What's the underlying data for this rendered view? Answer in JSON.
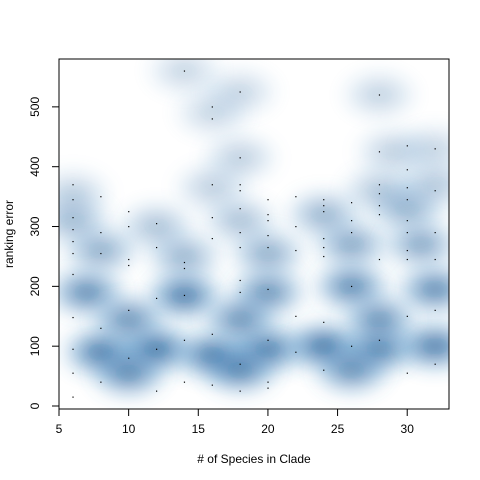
{
  "chart_data": {
    "type": "heatmap",
    "subtype": "smoothed-density-scatter",
    "title": "",
    "xlabel": "# of Species in Clade",
    "ylabel": "ranking error",
    "xlim": [
      5,
      33
    ],
    "ylim": [
      -5,
      580
    ],
    "x_ticks": [
      5,
      10,
      15,
      20,
      25,
      30
    ],
    "y_ticks": [
      0,
      100,
      200,
      300,
      400,
      500
    ],
    "grid": false,
    "legend": "none",
    "colors": {
      "low": "#ffffff",
      "high": "#08306b"
    },
    "points": [
      {
        "x": 6,
        "y": 15
      },
      {
        "x": 6,
        "y": 55
      },
      {
        "x": 6,
        "y": 95
      },
      {
        "x": 6,
        "y": 148
      },
      {
        "x": 6,
        "y": 220
      },
      {
        "x": 6,
        "y": 255
      },
      {
        "x": 6,
        "y": 275
      },
      {
        "x": 6,
        "y": 295
      },
      {
        "x": 6,
        "y": 315
      },
      {
        "x": 6,
        "y": 345
      },
      {
        "x": 6,
        "y": 370
      },
      {
        "x": 8,
        "y": 40
      },
      {
        "x": 8,
        "y": 130
      },
      {
        "x": 8,
        "y": 255
      },
      {
        "x": 8,
        "y": 290
      },
      {
        "x": 8,
        "y": 350
      },
      {
        "x": 10,
        "y": 80
      },
      {
        "x": 10,
        "y": 160
      },
      {
        "x": 10,
        "y": 235
      },
      {
        "x": 10,
        "y": 245
      },
      {
        "x": 10,
        "y": 300
      },
      {
        "x": 10,
        "y": 325
      },
      {
        "x": 12,
        "y": 25
      },
      {
        "x": 12,
        "y": 95
      },
      {
        "x": 12,
        "y": 180
      },
      {
        "x": 12,
        "y": 265
      },
      {
        "x": 12,
        "y": 305
      },
      {
        "x": 14,
        "y": 40
      },
      {
        "x": 14,
        "y": 110
      },
      {
        "x": 14,
        "y": 185
      },
      {
        "x": 14,
        "y": 230
      },
      {
        "x": 14,
        "y": 240
      },
      {
        "x": 14,
        "y": 560
      },
      {
        "x": 16,
        "y": 35
      },
      {
        "x": 16,
        "y": 120
      },
      {
        "x": 16,
        "y": 280
      },
      {
        "x": 16,
        "y": 315
      },
      {
        "x": 16,
        "y": 370
      },
      {
        "x": 16,
        "y": 480
      },
      {
        "x": 16,
        "y": 500
      },
      {
        "x": 18,
        "y": 25
      },
      {
        "x": 18,
        "y": 70
      },
      {
        "x": 18,
        "y": 190
      },
      {
        "x": 18,
        "y": 210
      },
      {
        "x": 18,
        "y": 265
      },
      {
        "x": 18,
        "y": 290
      },
      {
        "x": 18,
        "y": 330
      },
      {
        "x": 18,
        "y": 360
      },
      {
        "x": 18,
        "y": 370
      },
      {
        "x": 18,
        "y": 415
      },
      {
        "x": 18,
        "y": 525
      },
      {
        "x": 20,
        "y": 30
      },
      {
        "x": 20,
        "y": 40
      },
      {
        "x": 20,
        "y": 110
      },
      {
        "x": 20,
        "y": 195
      },
      {
        "x": 20,
        "y": 265
      },
      {
        "x": 20,
        "y": 285
      },
      {
        "x": 20,
        "y": 310
      },
      {
        "x": 20,
        "y": 320
      },
      {
        "x": 20,
        "y": 345
      },
      {
        "x": 22,
        "y": 90
      },
      {
        "x": 22,
        "y": 150
      },
      {
        "x": 22,
        "y": 260
      },
      {
        "x": 22,
        "y": 300
      },
      {
        "x": 22,
        "y": 350
      },
      {
        "x": 24,
        "y": 60
      },
      {
        "x": 24,
        "y": 140
      },
      {
        "x": 24,
        "y": 250
      },
      {
        "x": 24,
        "y": 265
      },
      {
        "x": 24,
        "y": 280
      },
      {
        "x": 24,
        "y": 325
      },
      {
        "x": 24,
        "y": 335
      },
      {
        "x": 24,
        "y": 345
      },
      {
        "x": 26,
        "y": 100
      },
      {
        "x": 26,
        "y": 200
      },
      {
        "x": 26,
        "y": 290
      },
      {
        "x": 26,
        "y": 310
      },
      {
        "x": 26,
        "y": 340
      },
      {
        "x": 28,
        "y": 110
      },
      {
        "x": 28,
        "y": 245
      },
      {
        "x": 28,
        "y": 320
      },
      {
        "x": 28,
        "y": 335
      },
      {
        "x": 28,
        "y": 355
      },
      {
        "x": 28,
        "y": 370
      },
      {
        "x": 28,
        "y": 425
      },
      {
        "x": 28,
        "y": 520
      },
      {
        "x": 30,
        "y": 55
      },
      {
        "x": 30,
        "y": 150
      },
      {
        "x": 30,
        "y": 245
      },
      {
        "x": 30,
        "y": 260
      },
      {
        "x": 30,
        "y": 290
      },
      {
        "x": 30,
        "y": 310
      },
      {
        "x": 30,
        "y": 345
      },
      {
        "x": 30,
        "y": 365
      },
      {
        "x": 30,
        "y": 395
      },
      {
        "x": 30,
        "y": 435
      },
      {
        "x": 32,
        "y": 70
      },
      {
        "x": 32,
        "y": 160
      },
      {
        "x": 32,
        "y": 245
      },
      {
        "x": 32,
        "y": 290
      },
      {
        "x": 32,
        "y": 360
      },
      {
        "x": 32,
        "y": 430
      }
    ],
    "density_blobs": [
      {
        "x": 8,
        "y": 90,
        "weight": 0.95
      },
      {
        "x": 12,
        "y": 95,
        "weight": 1.0
      },
      {
        "x": 16,
        "y": 85,
        "weight": 0.95
      },
      {
        "x": 20,
        "y": 95,
        "weight": 0.95
      },
      {
        "x": 24,
        "y": 100,
        "weight": 1.0
      },
      {
        "x": 28,
        "y": 95,
        "weight": 0.9
      },
      {
        "x": 32,
        "y": 100,
        "weight": 0.95
      },
      {
        "x": 10,
        "y": 55,
        "weight": 0.85
      },
      {
        "x": 18,
        "y": 60,
        "weight": 0.85
      },
      {
        "x": 26,
        "y": 60,
        "weight": 0.8
      },
      {
        "x": 7,
        "y": 190,
        "weight": 0.85
      },
      {
        "x": 14,
        "y": 185,
        "weight": 0.95
      },
      {
        "x": 20,
        "y": 190,
        "weight": 0.8
      },
      {
        "x": 26,
        "y": 200,
        "weight": 0.85
      },
      {
        "x": 32,
        "y": 195,
        "weight": 0.85
      },
      {
        "x": 10,
        "y": 145,
        "weight": 0.8
      },
      {
        "x": 18,
        "y": 145,
        "weight": 0.8
      },
      {
        "x": 28,
        "y": 145,
        "weight": 0.8
      },
      {
        "x": 8,
        "y": 260,
        "weight": 0.6
      },
      {
        "x": 14,
        "y": 250,
        "weight": 0.55
      },
      {
        "x": 20,
        "y": 255,
        "weight": 0.6
      },
      {
        "x": 26,
        "y": 270,
        "weight": 0.65
      },
      {
        "x": 31,
        "y": 270,
        "weight": 0.65
      },
      {
        "x": 6,
        "y": 310,
        "weight": 0.5
      },
      {
        "x": 12,
        "y": 300,
        "weight": 0.45
      },
      {
        "x": 18,
        "y": 310,
        "weight": 0.45
      },
      {
        "x": 24,
        "y": 320,
        "weight": 0.55
      },
      {
        "x": 30,
        "y": 330,
        "weight": 0.55
      },
      {
        "x": 6,
        "y": 355,
        "weight": 0.35
      },
      {
        "x": 16,
        "y": 365,
        "weight": 0.35
      },
      {
        "x": 28,
        "y": 360,
        "weight": 0.4
      },
      {
        "x": 32,
        "y": 370,
        "weight": 0.4
      },
      {
        "x": 18,
        "y": 415,
        "weight": 0.35
      },
      {
        "x": 29,
        "y": 425,
        "weight": 0.35
      },
      {
        "x": 32,
        "y": 430,
        "weight": 0.3
      },
      {
        "x": 16,
        "y": 490,
        "weight": 0.3
      },
      {
        "x": 18,
        "y": 525,
        "weight": 0.3
      },
      {
        "x": 28,
        "y": 520,
        "weight": 0.32
      },
      {
        "x": 14,
        "y": 560,
        "weight": 0.3
      }
    ]
  }
}
